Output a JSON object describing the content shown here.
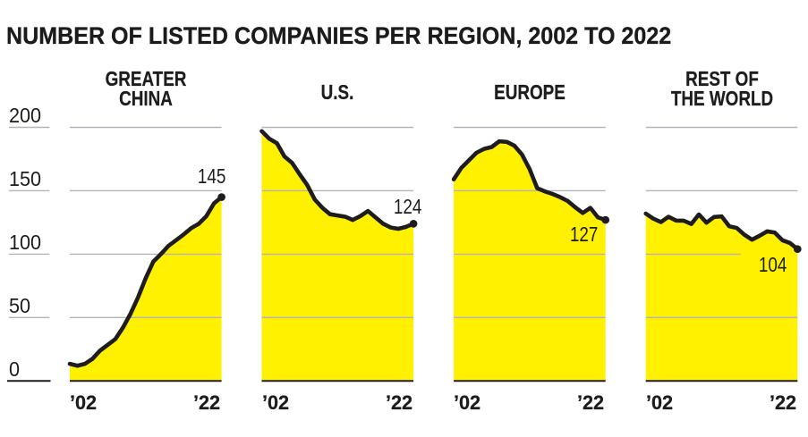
{
  "title": "NUMBER OF LISTED COMPANIES PER REGION, 2002 TO 2022",
  "chart_data": {
    "type": "area",
    "title": "NUMBER OF LISTED COMPANIES PER REGION, 2002 TO 2022",
    "x": [
      2002,
      2003,
      2004,
      2005,
      2006,
      2007,
      2008,
      2009,
      2010,
      2011,
      2012,
      2013,
      2014,
      2015,
      2016,
      2017,
      2018,
      2019,
      2020,
      2021,
      2022
    ],
    "x_tick_labels": [
      "’02",
      "’22"
    ],
    "y_ticks": [
      0,
      50,
      100,
      150,
      200
    ],
    "ylim": [
      0,
      212
    ],
    "grid": true,
    "area_color": "#fff100",
    "line_color": "#1e1c1c",
    "grid_color": "#b2b4bc",
    "series": [
      {
        "name": "Greater China",
        "title_lines": [
          "GREATER",
          "CHINA"
        ],
        "end_label": "145",
        "end_label_position": "above",
        "values": [
          13.5,
          12,
          13.5,
          17.5,
          24,
          28.5,
          33,
          42,
          53,
          66,
          81,
          94,
          100,
          106.5,
          111,
          115.5,
          120.5,
          124,
          130,
          140,
          145
        ]
      },
      {
        "name": "U.S.",
        "title_lines": [
          "U.S."
        ],
        "end_label": "124",
        "end_label_position": "above",
        "values": [
          197,
          191,
          187.5,
          177,
          172,
          163,
          154.5,
          143,
          136.5,
          131.5,
          130.5,
          129.5,
          127,
          130,
          134,
          129,
          124,
          121,
          120,
          121.5,
          124
        ]
      },
      {
        "name": "Europe",
        "title_lines": [
          "EUROPE"
        ],
        "end_label": "127",
        "end_label_position": "below",
        "values": [
          159,
          168,
          174,
          180,
          183,
          184.5,
          189,
          188.5,
          185.5,
          178.5,
          167,
          152,
          149.5,
          147.5,
          145,
          142,
          137,
          132.5,
          136.5,
          129,
          127
        ]
      },
      {
        "name": "Rest of the World",
        "title_lines": [
          "REST OF",
          "THE WORLD"
        ],
        "end_label": "104",
        "end_label_position": "below",
        "values": [
          132,
          128,
          125.3,
          129.5,
          126.5,
          126.4,
          123.8,
          131.3,
          124.8,
          129.3,
          129.8,
          122,
          120.6,
          115.3,
          111.4,
          114.5,
          118,
          117,
          111,
          108.8,
          104
        ]
      }
    ]
  }
}
